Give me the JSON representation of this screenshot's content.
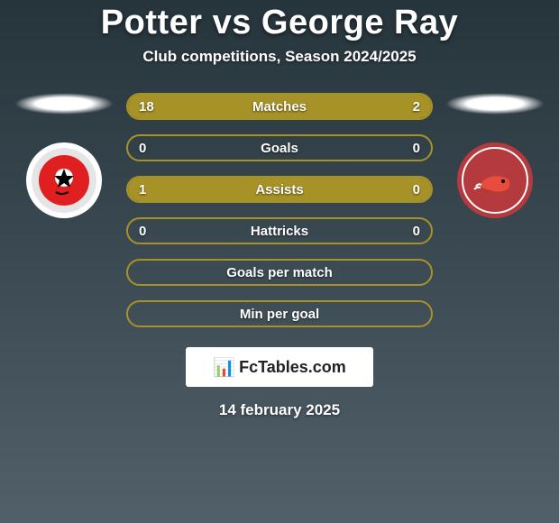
{
  "background_gradient": {
    "from": "#26343c",
    "to": "#516069"
  },
  "title": "Potter vs George Ray",
  "subtitle": "Club competitions, Season 2024/2025",
  "accent_color": "#a79227",
  "bar_border_color": "#a79227",
  "bar_bg_color": "transparent",
  "text_color": "#ffffff",
  "player_left": {
    "name": "Potter",
    "badge_bg": "#ffffff",
    "badge_ring": "#e5e5e5",
    "badge_inner": "#e02020",
    "badge_accent": "#000000"
  },
  "player_right": {
    "name": "George Ray",
    "badge_bg": "#b43a3e",
    "badge_ring": "#ffffff",
    "badge_inner": "#ffffff",
    "badge_accent": "#e74c3c"
  },
  "stats": [
    {
      "label": "Matches",
      "left_val": "18",
      "right_val": "2",
      "left_pct": 90,
      "right_pct": 10,
      "show_vals": true
    },
    {
      "label": "Goals",
      "left_val": "0",
      "right_val": "0",
      "left_pct": 0,
      "right_pct": 0,
      "show_vals": true
    },
    {
      "label": "Assists",
      "left_val": "1",
      "right_val": "0",
      "left_pct": 100,
      "right_pct": 0,
      "show_vals": true
    },
    {
      "label": "Hattricks",
      "left_val": "0",
      "right_val": "0",
      "left_pct": 0,
      "right_pct": 0,
      "show_vals": true
    },
    {
      "label": "Goals per match",
      "left_val": "",
      "right_val": "",
      "left_pct": 0,
      "right_pct": 0,
      "show_vals": false
    },
    {
      "label": "Min per goal",
      "left_val": "",
      "right_val": "",
      "left_pct": 0,
      "right_pct": 0,
      "show_vals": false
    }
  ],
  "watermark": {
    "icon": "📊",
    "text": "FcTables.com"
  },
  "footer_date": "14 february 2025"
}
